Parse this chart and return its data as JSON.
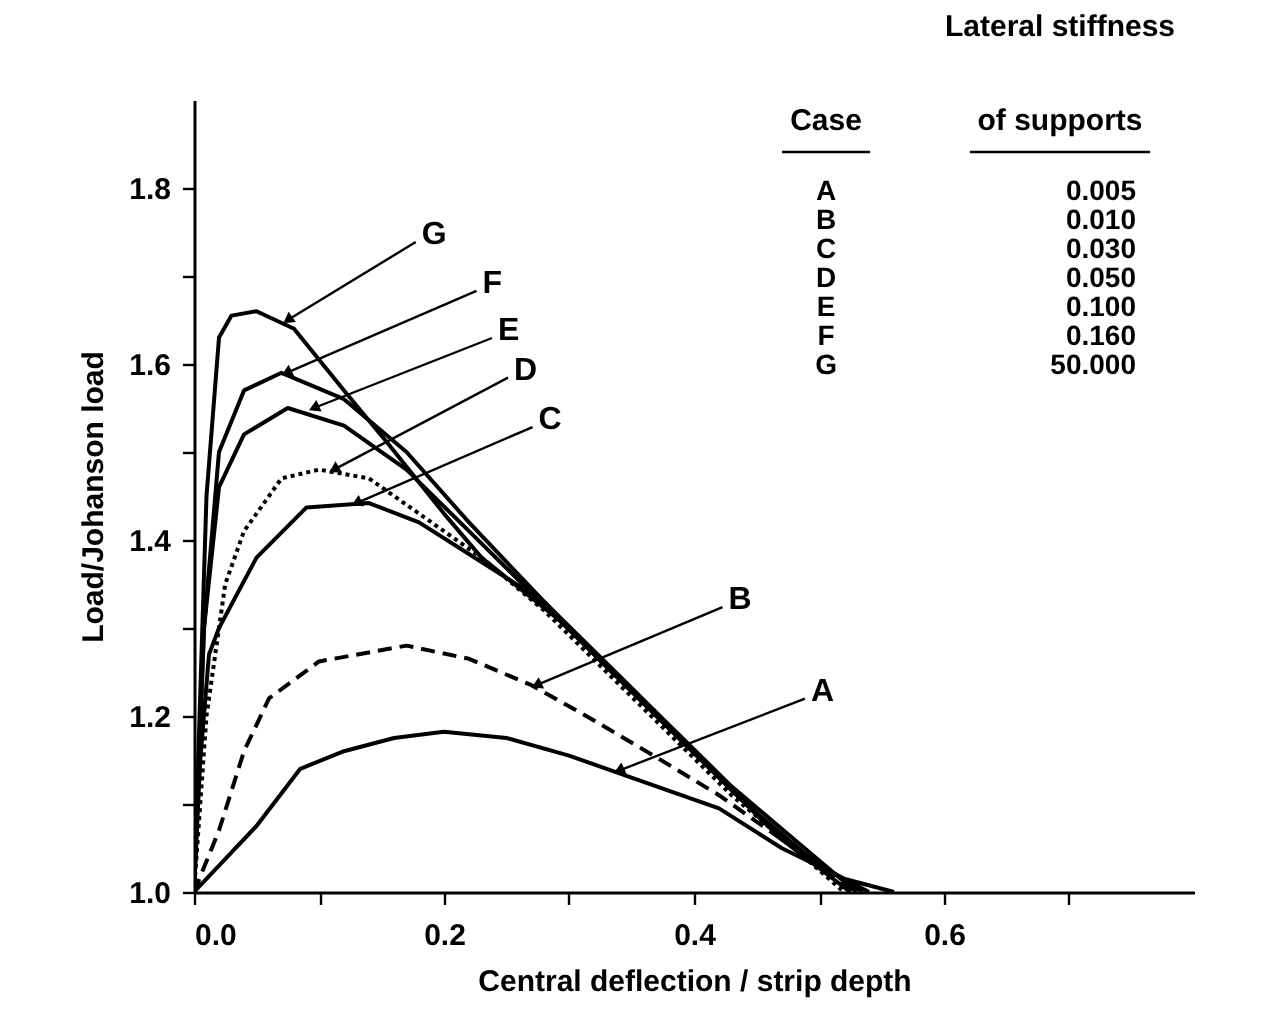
{
  "chart_data": {
    "type": "line",
    "xlabel": "Central deflection / strip depth",
    "ylabel": "Load/Johanson load",
    "xlim": [
      0,
      0.8
    ],
    "ylim": [
      1.0,
      1.9
    ],
    "xticks": [
      {
        "value": 0,
        "label": "0.0"
      },
      {
        "value": 0.1,
        "label": null
      },
      {
        "value": 0.2,
        "label": "0.2"
      },
      {
        "value": 0.3,
        "label": null
      },
      {
        "value": 0.4,
        "label": "0.4"
      },
      {
        "value": 0.5,
        "label": null
      },
      {
        "value": 0.6,
        "label": "0.6"
      },
      {
        "value": 0.7,
        "label": null
      }
    ],
    "yticks": [
      {
        "value": 1.0,
        "label": "1.0"
      },
      {
        "value": 1.1,
        "label": null
      },
      {
        "value": 1.2,
        "label": "1.2"
      },
      {
        "value": 1.3,
        "label": null
      },
      {
        "value": 1.4,
        "label": "1.4"
      },
      {
        "value": 1.5,
        "label": null
      },
      {
        "value": 1.6,
        "label": "1.6"
      },
      {
        "value": 1.7,
        "label": null
      },
      {
        "value": 1.8,
        "label": "1.8"
      }
    ],
    "grid": false,
    "marker": "none",
    "series": [
      {
        "color": "#000000",
        "line_style": "solid",
        "x": [
          0,
          0.02,
          0.05,
          0.085,
          0.12,
          0.16,
          0.2,
          0.25,
          0.3,
          0.35,
          0.42,
          0.47,
          0.52,
          0.56
        ],
        "values": [
          1.0,
          1.03,
          1.075,
          1.14,
          1.16,
          1.175,
          1.182,
          1.175,
          1.155,
          1.13,
          1.095,
          1.05,
          1.015,
          1.0
        ]
      },
      {
        "color": "#000000",
        "line_style": "dashed",
        "x": [
          0,
          0.02,
          0.04,
          0.06,
          0.1,
          0.17,
          0.22,
          0.27,
          0.32,
          0.37,
          0.42,
          0.47,
          0.53
        ],
        "values": [
          1.0,
          1.07,
          1.16,
          1.22,
          1.262,
          1.28,
          1.265,
          1.235,
          1.195,
          1.153,
          1.11,
          1.06,
          1.0
        ]
      },
      {
        "color": "#000000",
        "line_style": "solid",
        "x": [
          0,
          0.005,
          0.012,
          0.02,
          0.05,
          0.09,
          0.14,
          0.18,
          0.23,
          0.28,
          0.33,
          0.38,
          0.43,
          0.48,
          0.53
        ],
        "values": [
          1.0,
          1.15,
          1.27,
          1.3,
          1.38,
          1.437,
          1.442,
          1.42,
          1.375,
          1.33,
          1.26,
          1.19,
          1.12,
          1.06,
          1.0
        ]
      },
      {
        "color": "#000000",
        "line_style": "dotted",
        "x": [
          0,
          0.01,
          0.025,
          0.04,
          0.07,
          0.1,
          0.14,
          0.18,
          0.23,
          0.28,
          0.33,
          0.38,
          0.43,
          0.48,
          0.52
        ],
        "values": [
          1.0,
          1.2,
          1.35,
          1.41,
          1.47,
          1.48,
          1.47,
          1.43,
          1.38,
          1.32,
          1.25,
          1.18,
          1.11,
          1.05,
          1.0
        ]
      },
      {
        "color": "#000000",
        "line_style": "solid",
        "x": [
          0,
          0.008,
          0.02,
          0.04,
          0.075,
          0.12,
          0.17,
          0.22,
          0.27,
          0.32,
          0.37,
          0.42,
          0.47,
          0.525
        ],
        "values": [
          1.0,
          1.3,
          1.46,
          1.52,
          1.55,
          1.53,
          1.48,
          1.41,
          1.34,
          1.27,
          1.2,
          1.13,
          1.06,
          1.0
        ]
      },
      {
        "color": "#000000",
        "line_style": "solid",
        "x": [
          0,
          0.008,
          0.02,
          0.04,
          0.07,
          0.12,
          0.17,
          0.22,
          0.27,
          0.32,
          0.37,
          0.42,
          0.47,
          0.535
        ],
        "values": [
          1.0,
          1.3,
          1.5,
          1.57,
          1.59,
          1.56,
          1.5,
          1.42,
          1.345,
          1.27,
          1.2,
          1.13,
          1.06,
          1.0
        ]
      },
      {
        "color": "#000000",
        "line_style": "solid",
        "x": [
          0,
          0.01,
          0.02,
          0.03,
          0.05,
          0.08,
          0.12,
          0.155,
          0.2,
          0.23,
          0.3,
          0.35,
          0.4,
          0.45,
          0.5,
          0.54
        ],
        "values": [
          1.0,
          1.45,
          1.63,
          1.655,
          1.66,
          1.64,
          1.57,
          1.51,
          1.43,
          1.38,
          1.3,
          1.23,
          1.16,
          1.09,
          1.03,
          1.0
        ]
      }
    ],
    "annotations": [
      {
        "text": "A",
        "x": 0.34,
        "y": 1.138
      },
      {
        "text": "B",
        "x": 0.274,
        "y": 1.235
      },
      {
        "text": "C",
        "x": 0.13,
        "y": 1.442
      },
      {
        "text": "D",
        "x": 0.112,
        "y": 1.48
      },
      {
        "text": "E",
        "x": 0.096,
        "y": 1.55
      },
      {
        "text": "F",
        "x": 0.074,
        "y": 1.59
      },
      {
        "text": "G",
        "x": 0.075,
        "y": 1.65
      },
      "Case",
      "A",
      "B",
      "C",
      "D",
      "E",
      "F",
      "G",
      "Lateral stiffness",
      "of supports",
      "0.005",
      "0.010",
      "0.030",
      "0.050",
      "0.100",
      "0.160",
      "50.000"
    ]
  }
}
